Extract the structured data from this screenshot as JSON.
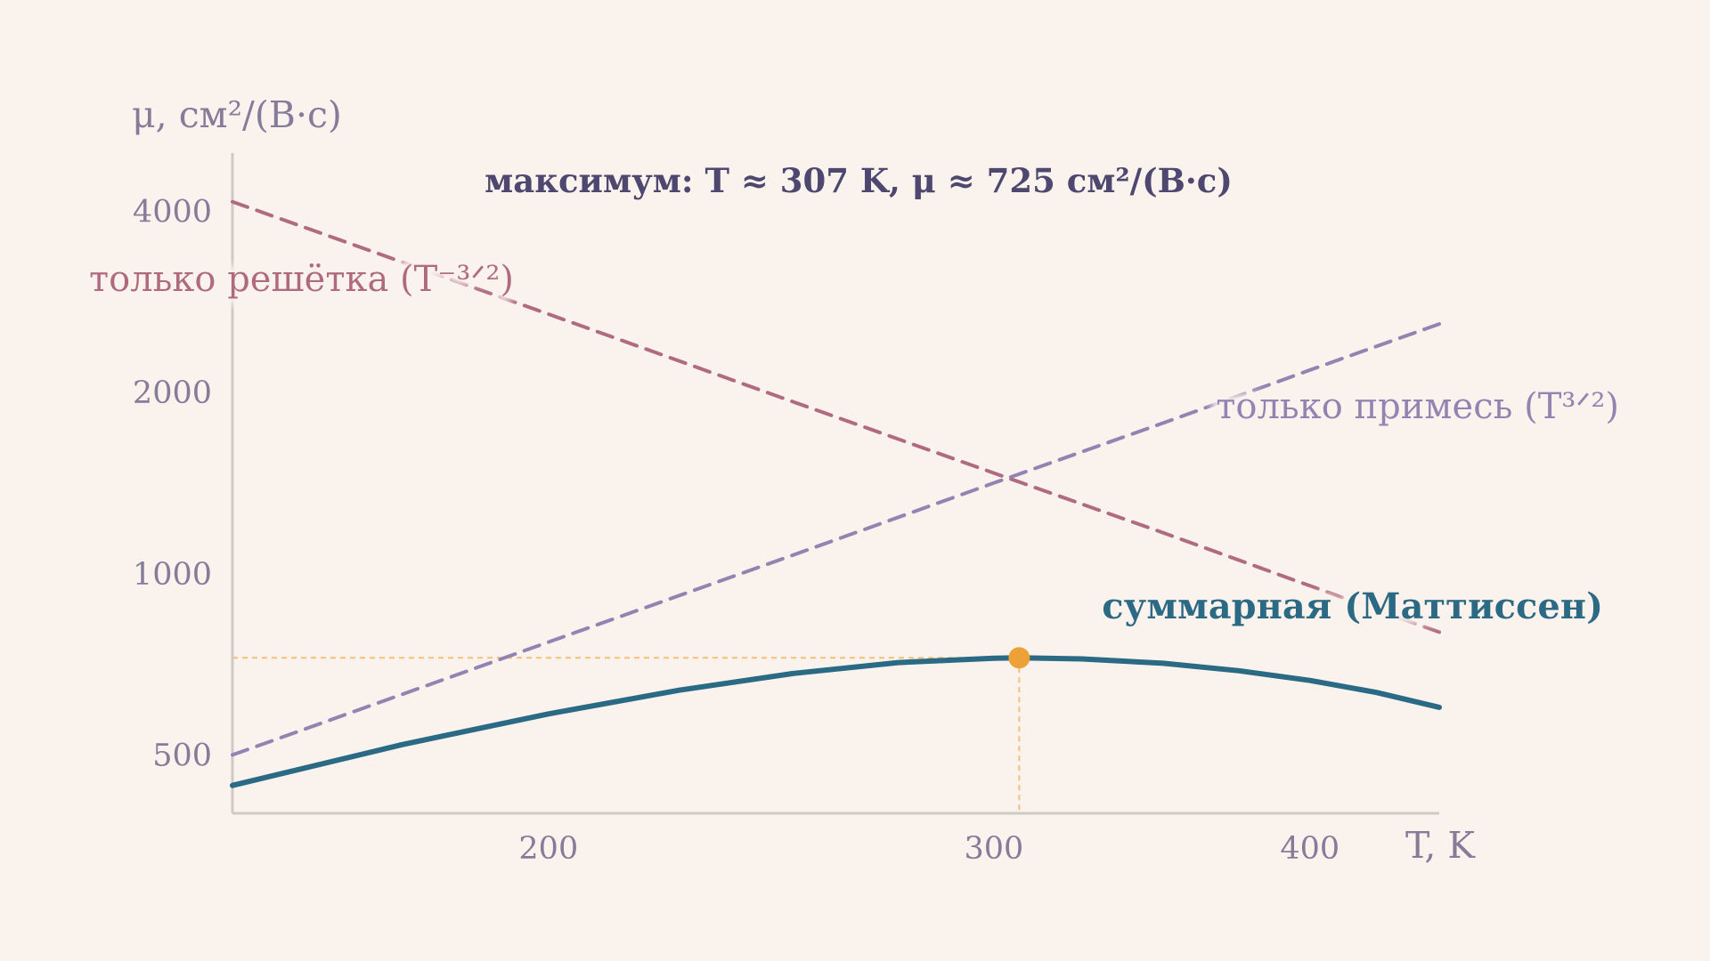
{
  "chart_data": {
    "type": "line",
    "xlabel": "T, K",
    "ylabel": "μ, см²/(В·с)",
    "x_scale": "log",
    "y_scale": "log",
    "xlim": [
      150,
      450
    ],
    "ylim": [
      400,
      5000
    ],
    "x_ticks": [
      200,
      300,
      400
    ],
    "y_ticks": [
      500,
      1000,
      2000,
      4000
    ],
    "grid": false,
    "annotation": "максимум: T  ≈  307 K, μ  ≈  725 см²/(В·с)",
    "maximum": {
      "x": 307,
      "y": 725
    },
    "series": [
      {
        "name": "только решётка (T⁻³ᐟ²)",
        "style": "dashed",
        "color": "#b06b80",
        "x": [
          150,
          200,
          250,
          300,
          350,
          400,
          450
        ],
        "y": [
          4150,
          2700,
          1930,
          1470,
          1170,
          955,
          800
        ]
      },
      {
        "name": "только примесь (T³ᐟ²)",
        "style": "dashed",
        "color": "#9482b2",
        "x": [
          150,
          200,
          250,
          300,
          350,
          400,
          450
        ],
        "y": [
          500,
          770,
          1075,
          1415,
          1780,
          2180,
          2600
        ]
      },
      {
        "name": "суммарная (Маттиссен)",
        "style": "solid",
        "color": "#2a6a85",
        "x": [
          150,
          175,
          200,
          225,
          250,
          275,
          300,
          307,
          325,
          350,
          375,
          400,
          425,
          450
        ],
        "y": [
          445,
          520,
          585,
          640,
          683,
          712,
          724,
          725,
          722,
          710,
          690,
          665,
          635,
          600
        ]
      }
    ]
  }
}
